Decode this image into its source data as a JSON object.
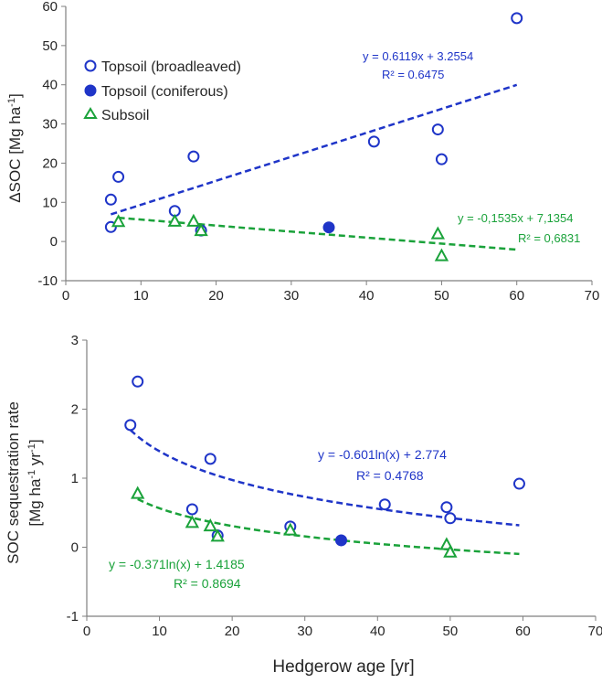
{
  "colors": {
    "broadleaved": "#1f35c8",
    "coniferous": "#1f35c8",
    "subsoil": "#1aa23a",
    "axis": "#7f7f7f",
    "text": "#262626"
  },
  "xlabel": "Hedgerow age [yr]",
  "chart_data": [
    {
      "type": "scatter",
      "ylabel": "ΔSOC [Mg ha-1]",
      "ylabel_parts": [
        "ΔSOC [Mg ha",
        "-1",
        "]"
      ],
      "xlim": [
        0,
        70
      ],
      "ylim": [
        -10,
        60
      ],
      "xticks": [
        "0",
        "10",
        "20",
        "30",
        "40",
        "50",
        "60",
        "70"
      ],
      "yticks": [
        "-10",
        "0",
        "10",
        "20",
        "30",
        "40",
        "50",
        "60"
      ],
      "legend": {
        "position": "top-left",
        "entries": [
          {
            "label": "Topsoil (broadleaved)",
            "marker": "open-circle",
            "series": "broadleaved"
          },
          {
            "label": "Topsoil (coniferous)",
            "marker": "filled-circle",
            "series": "coniferous"
          },
          {
            "label": "Subsoil",
            "marker": "open-triangle",
            "series": "subsoil"
          }
        ]
      },
      "series": [
        {
          "name": "Topsoil (broadleaved)",
          "key": "broadleaved",
          "marker": "open-circle",
          "points": [
            [
              6,
              3.7
            ],
            [
              6,
              10.7
            ],
            [
              7,
              16.5
            ],
            [
              14.5,
              7.8
            ],
            [
              17,
              21.7
            ],
            [
              18,
              2.8
            ],
            [
              41,
              25.5
            ],
            [
              49.5,
              28.6
            ],
            [
              50,
              21
            ],
            [
              60,
              57
            ]
          ]
        },
        {
          "name": "Topsoil (coniferous)",
          "key": "coniferous",
          "marker": "filled-circle",
          "points": [
            [
              35,
              3.6
            ]
          ]
        },
        {
          "name": "Subsoil",
          "key": "subsoil",
          "marker": "open-triangle",
          "points": [
            [
              7,
              5.1
            ],
            [
              14.5,
              5.2
            ],
            [
              17,
              5.2
            ],
            [
              18,
              2.8
            ],
            [
              49.5,
              2
            ],
            [
              50,
              -3.6
            ]
          ]
        }
      ],
      "trendlines": [
        {
          "key": "broadleaved",
          "kind": "linear",
          "slope": 0.6119,
          "intercept": 3.2554,
          "x_range": [
            6,
            60
          ],
          "equation": "y = 0.6119x + 3.2554",
          "r2": "R² = 0.6475"
        },
        {
          "key": "subsoil",
          "kind": "linear",
          "slope": -0.1535,
          "intercept": 7.1354,
          "x_range": [
            7,
            60
          ],
          "equation": "y = -0,1535x + 7,1354",
          "r2": "R² = 0,6831"
        }
      ]
    },
    {
      "type": "scatter",
      "ylabel_line1": "SOC sequestration rate",
      "ylabel_line2_parts": [
        "[Mg ha",
        "-1",
        " yr",
        "-1",
        "]"
      ],
      "ylabel": "SOC sequestration rate [Mg ha-1 yr-1]",
      "xlim": [
        0,
        70
      ],
      "ylim": [
        -1,
        3
      ],
      "xticks": [
        "0",
        "10",
        "20",
        "30",
        "40",
        "50",
        "60",
        "70"
      ],
      "yticks": [
        "-1",
        "0",
        "1",
        "2",
        "3"
      ],
      "series": [
        {
          "name": "Topsoil (broadleaved)",
          "key": "broadleaved",
          "marker": "open-circle",
          "points": [
            [
              6,
              1.77
            ],
            [
              7,
              2.4
            ],
            [
              14.5,
              0.55
            ],
            [
              17,
              1.28
            ],
            [
              18,
              0.17
            ],
            [
              28,
              0.3
            ],
            [
              41,
              0.62
            ],
            [
              49.5,
              0.58
            ],
            [
              50,
              0.42
            ],
            [
              59.5,
              0.92
            ]
          ]
        },
        {
          "name": "Topsoil (coniferous)",
          "key": "coniferous",
          "marker": "filled-circle",
          "points": [
            [
              35,
              0.1
            ]
          ]
        },
        {
          "name": "Subsoil",
          "key": "subsoil",
          "marker": "open-triangle",
          "points": [
            [
              7,
              0.78
            ],
            [
              14.5,
              0.36
            ],
            [
              17,
              0.31
            ],
            [
              18,
              0.16
            ],
            [
              28,
              0.25
            ],
            [
              49.5,
              0.04
            ],
            [
              50,
              -0.07
            ]
          ]
        }
      ],
      "trendlines": [
        {
          "key": "broadleaved",
          "kind": "log",
          "a": -0.601,
          "b": 2.774,
          "x_range": [
            6,
            59.5
          ],
          "equation": "y = -0.601ln(x) + 2.774",
          "r2": "R² = 0.4768"
        },
        {
          "key": "subsoil",
          "kind": "log",
          "a": -0.371,
          "b": 1.4185,
          "x_range": [
            7,
            59.5
          ],
          "equation": "y = -0.371ln(x) + 1.4185",
          "r2": "R² = 0.8694"
        }
      ]
    }
  ]
}
